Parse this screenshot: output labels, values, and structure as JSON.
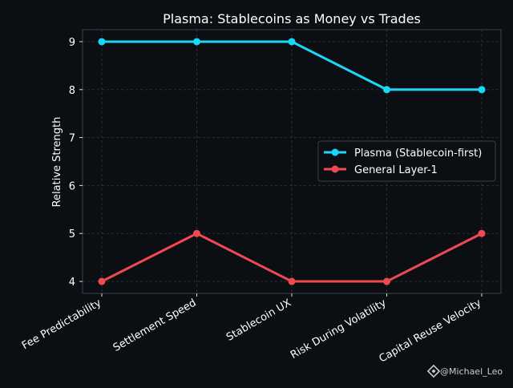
{
  "chart_data": {
    "type": "line",
    "title": "Plasma: Stablecoins as Money vs Trades",
    "xlabel": "",
    "ylabel": "Relative Strength",
    "categories": [
      "Fee Predictability",
      "Settlement Speed",
      "Stablecoin UX",
      "Risk During Volatility",
      "Capital Reuse Velocity"
    ],
    "series": [
      {
        "name": "Plasma (Stablecoin-first)",
        "values": [
          9,
          9,
          9,
          8,
          8
        ],
        "color": "#1ad8f5"
      },
      {
        "name": "General Layer-1",
        "values": [
          4,
          5,
          4,
          4,
          5
        ],
        "color": "#f04a50"
      }
    ],
    "ylim": [
      3.75,
      9.25
    ],
    "yticks": [
      "4",
      "5",
      "6",
      "7",
      "8",
      "9"
    ],
    "grid": true,
    "legend_position": "right"
  },
  "colors": {
    "background": "#0b0f14",
    "axes": "#3a4048",
    "grid": "#2a3036",
    "text": "#ffffff",
    "tick_text": "#d8dde3"
  },
  "watermark": {
    "icon": "binance-diamond-icon",
    "text": "@Michael_Leo"
  }
}
